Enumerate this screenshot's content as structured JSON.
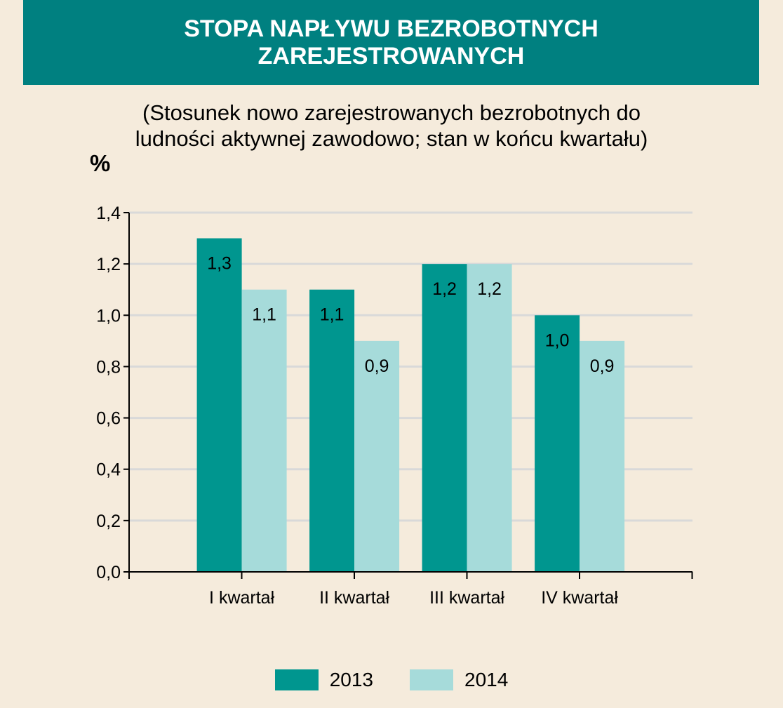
{
  "title_lines": [
    "STOPA NAPŁYWU BEZROBOTNYCH",
    "ZAREJESTROWANYCH"
  ],
  "subtitle_lines": [
    "(Stosunek nowo zarejestrowanych bezrobotnych do",
    "ludności aktywnej zawodowo; stan w końcu kwartału)"
  ],
  "unit_label": "%",
  "colors": {
    "header_bg": "#008080",
    "background": "#f5ebdc",
    "series_2013": "#00968f",
    "series_2014": "#a6dbda",
    "gridline": "#d9d9d9",
    "axis": "#000000"
  },
  "chart_data": {
    "type": "bar",
    "title": "STOPA NAPŁYWU BEZROBOTNYCH ZAREJESTROWANYCH",
    "ylabel": "%",
    "categories": [
      "I kwartał",
      "II kwartał",
      "III kwartał",
      "IV kwartał"
    ],
    "series": [
      {
        "name": "2013",
        "values": [
          1.3,
          1.1,
          1.2,
          1.0
        ]
      },
      {
        "name": "2014",
        "values": [
          1.1,
          0.9,
          1.2,
          0.9
        ]
      }
    ],
    "value_labels": [
      [
        "1,3",
        "1,1",
        "1,2",
        "1,0"
      ],
      [
        "1,1",
        "0,9",
        "1,2",
        "0,9"
      ]
    ],
    "ylim": [
      0,
      1.4
    ],
    "yticks": [
      0,
      0.2,
      0.4,
      0.6,
      0.8,
      1.0,
      1.2,
      1.4
    ],
    "ytick_labels": [
      "0,0",
      "0,2",
      "0,4",
      "0,6",
      "0,8",
      "1,0",
      "1,2",
      "1,4"
    ],
    "grid": true,
    "legend_position": "bottom"
  }
}
